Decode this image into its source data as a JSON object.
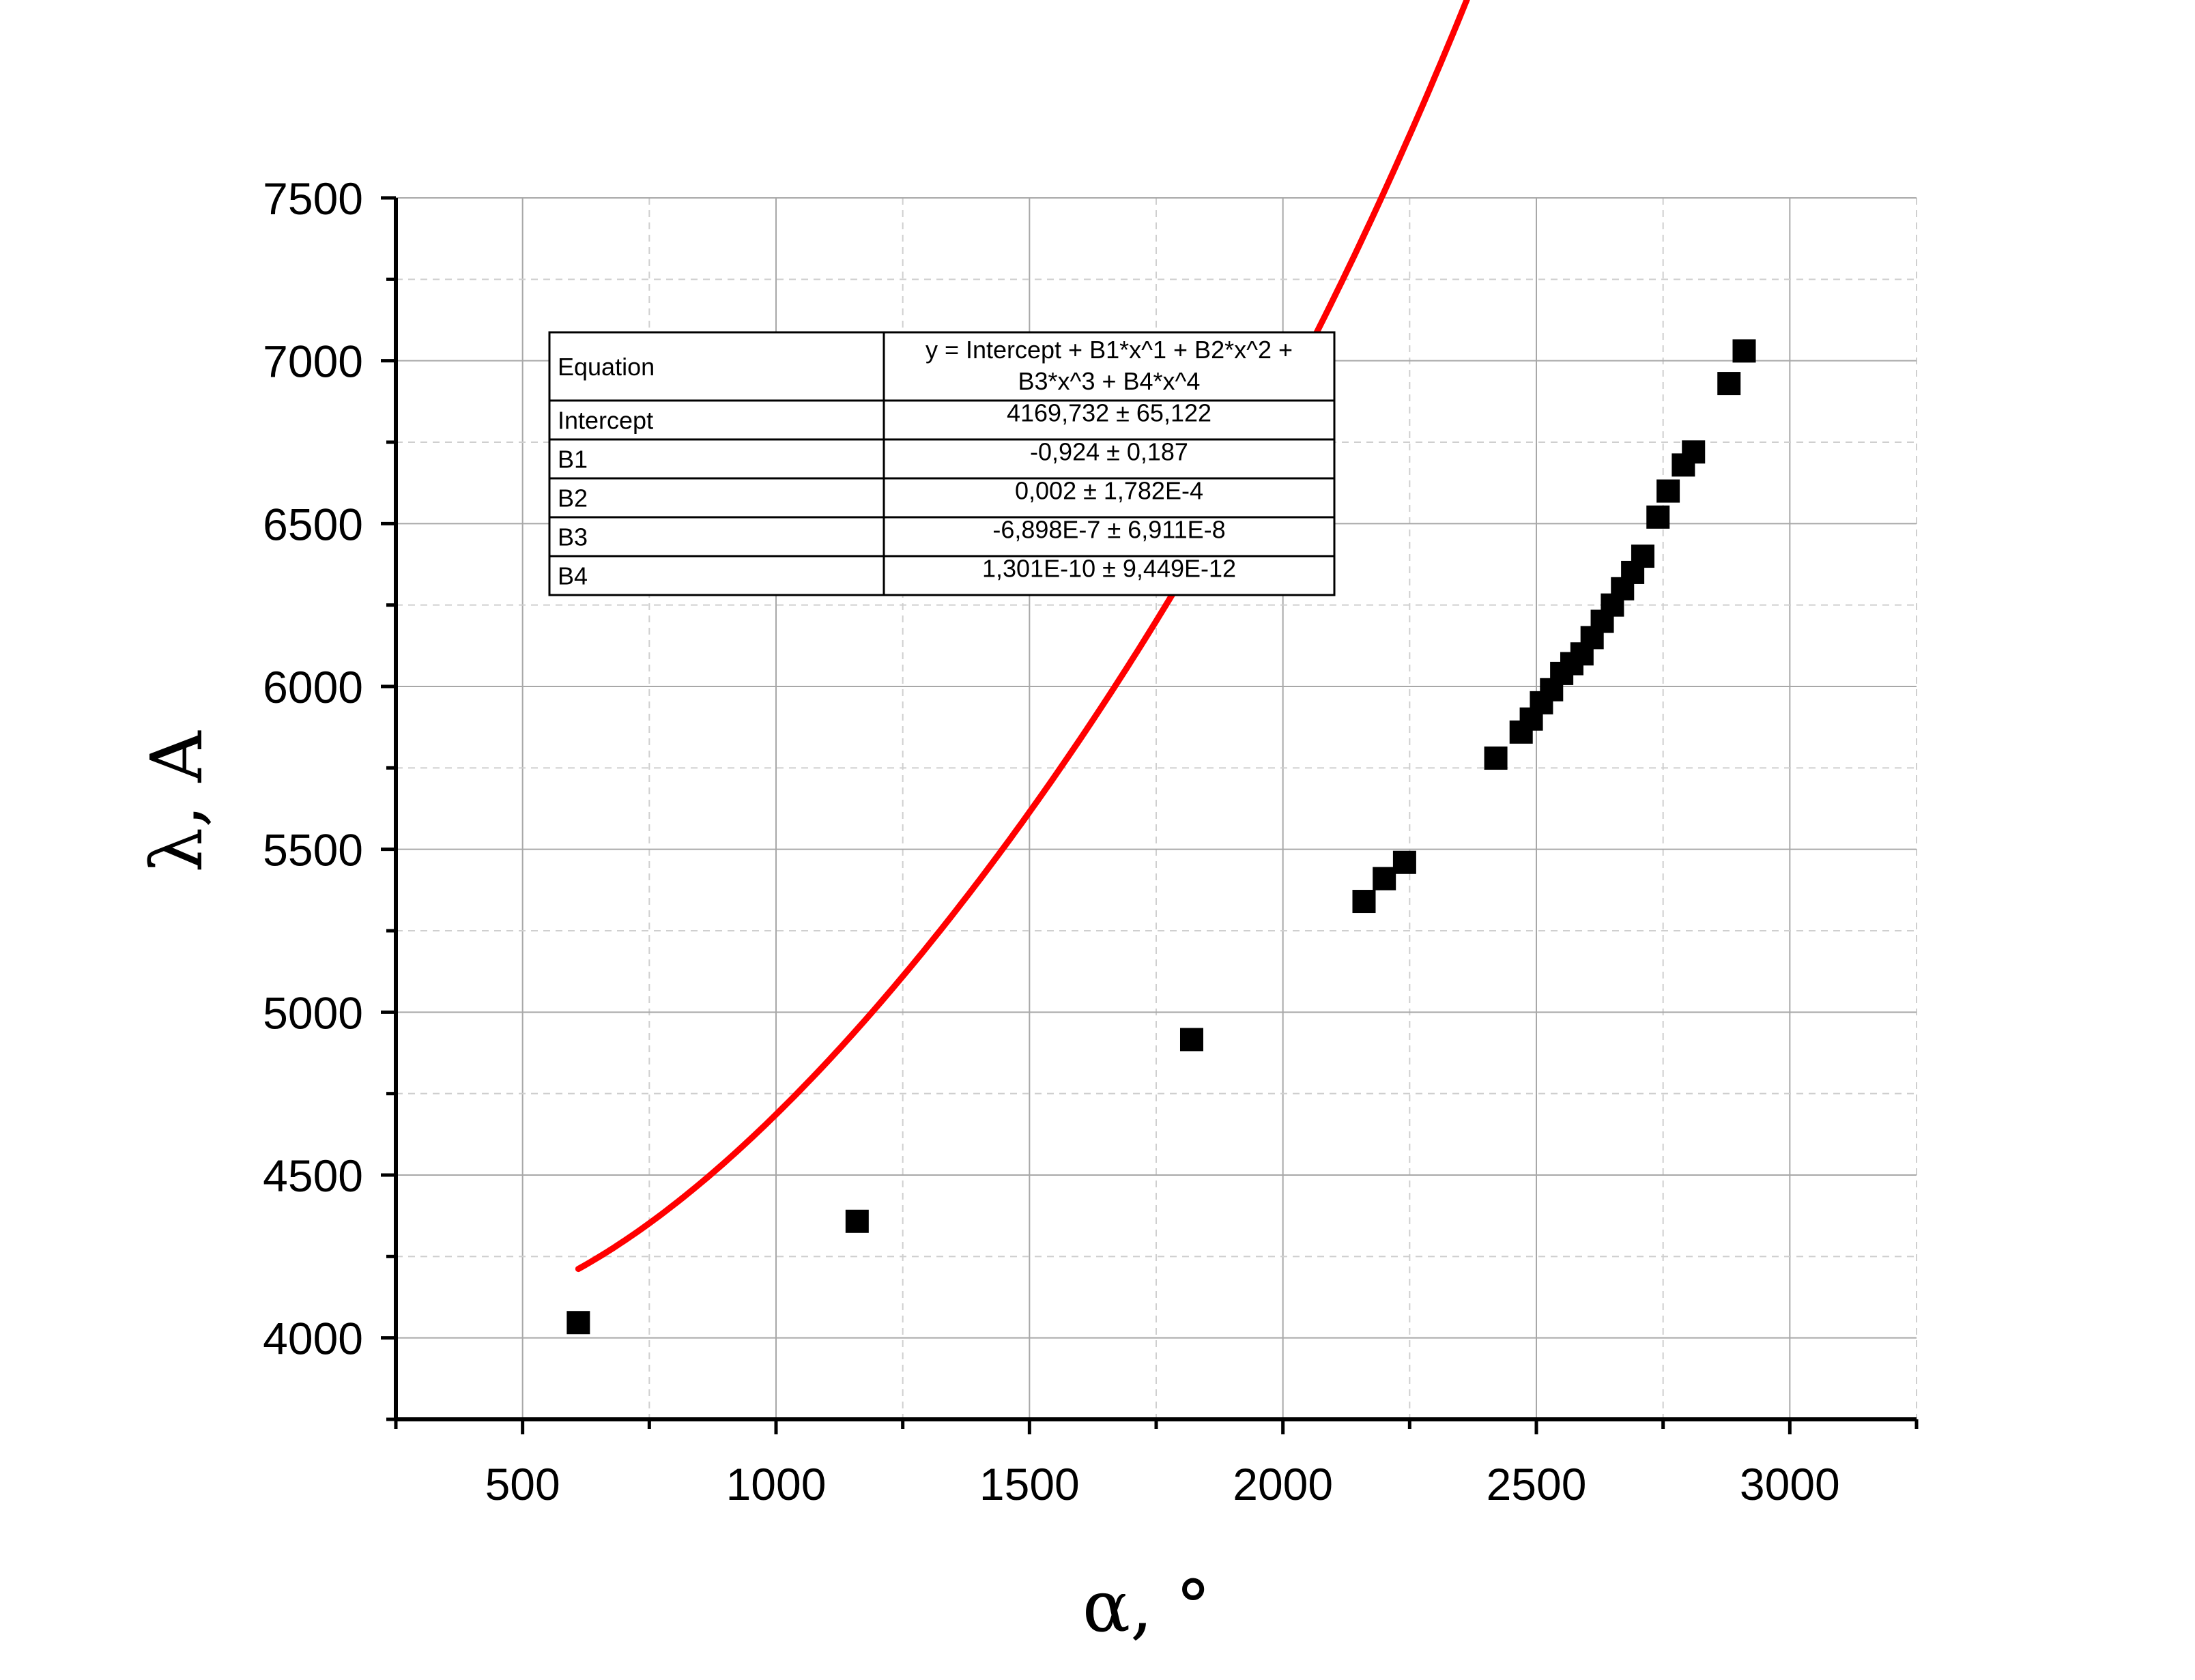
{
  "chart_data": {
    "type": "scatter",
    "xlabel": "α, °",
    "ylabel": "λ, A",
    "xlim": [
      250,
      3250
    ],
    "ylim": [
      3750,
      7500
    ],
    "x_ticks": [
      500,
      1000,
      1500,
      2000,
      2500,
      3000
    ],
    "y_ticks": [
      4000,
      4500,
      5000,
      5500,
      6000,
      6500,
      7000,
      7500
    ],
    "grid": true,
    "legend": "none",
    "series": [
      {
        "kind": "points",
        "marker": "square",
        "color": "#000000",
        "points": [
          [
            610,
            4047
          ],
          [
            1160,
            4358
          ],
          [
            1820,
            4916
          ],
          [
            2160,
            5340
          ],
          [
            2200,
            5410
          ],
          [
            2240,
            5460
          ],
          [
            2420,
            5780
          ],
          [
            2470,
            5860
          ],
          [
            2490,
            5900
          ],
          [
            2510,
            5950
          ],
          [
            2530,
            5990
          ],
          [
            2550,
            6040
          ],
          [
            2570,
            6070
          ],
          [
            2590,
            6100
          ],
          [
            2610,
            6150
          ],
          [
            2630,
            6200
          ],
          [
            2650,
            6250
          ],
          [
            2670,
            6300
          ],
          [
            2690,
            6350
          ],
          [
            2710,
            6400
          ],
          [
            2740,
            6520
          ],
          [
            2760,
            6600
          ],
          [
            2790,
            6680
          ],
          [
            2810,
            6720
          ],
          [
            2880,
            6930
          ],
          [
            2910,
            7030
          ]
        ]
      },
      {
        "kind": "fit",
        "color": "#ff0000",
        "x_range": [
          610,
          2910
        ],
        "coefficients": [
          4169.732,
          -0.924,
          0.002,
          -6.898e-07,
          1.301e-10
        ]
      }
    ],
    "fit_table": {
      "rows": [
        {
          "name": "Equation",
          "value_line1": "y = Intercept + B1*x^1 + B2*x^2 +",
          "value_line2": "B3*x^3 + B4*x^4"
        },
        {
          "name": "Intercept",
          "value": "4169,732 ± 65,122"
        },
        {
          "name": "B1",
          "value": "-0,924 ± 0,187"
        },
        {
          "name": "B2",
          "value": "0,002 ± 1,782E-4"
        },
        {
          "name": "B3",
          "value": "-6,898E-7 ± 6,911E-8"
        },
        {
          "name": "B4",
          "value": "1,301E-10 ± 9,449E-12"
        }
      ]
    }
  }
}
